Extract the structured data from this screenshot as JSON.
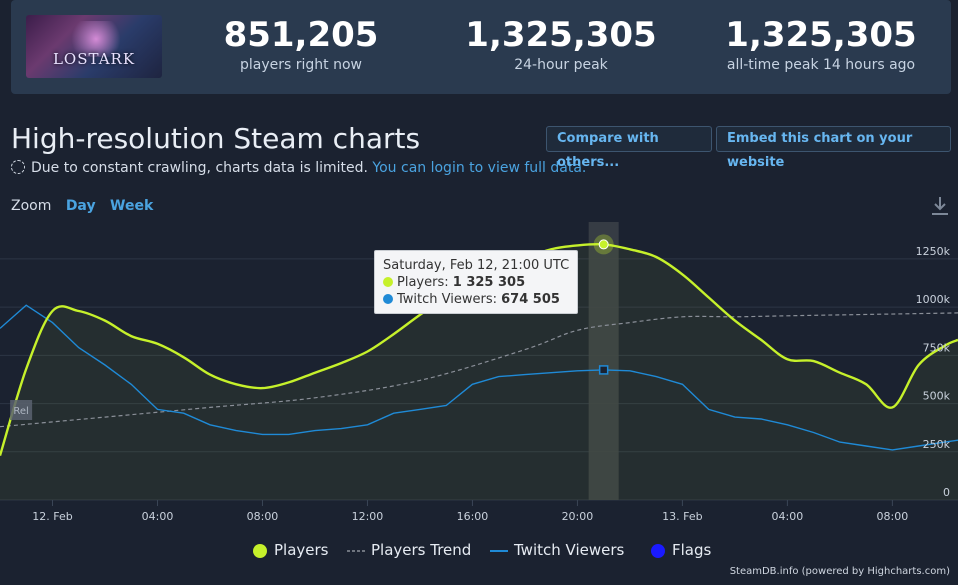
{
  "header": {
    "game_logo_text": "LOSTARK",
    "stats": [
      {
        "value": "851,205",
        "label": "players right now"
      },
      {
        "value": "1,325,305",
        "label": "24-hour peak"
      },
      {
        "value": "1,325,305",
        "label": "all-time peak 14 hours ago"
      }
    ]
  },
  "page_title": "High-resolution Steam charts",
  "notice": {
    "text": "Due to constant crawling, charts data is limited.",
    "link": "You can login to view full data."
  },
  "buttons": {
    "compare": "Compare with others...",
    "embed": "Embed this chart on your website"
  },
  "zoom": {
    "label": "Zoom",
    "day": "Day",
    "week": "Week"
  },
  "tooltip": {
    "date": "Saturday, Feb 12, 21:00 UTC",
    "players_label": "Players:",
    "players_value": "1 325 305",
    "twitch_label": "Twitch Viewers:",
    "twitch_value": "674 505"
  },
  "legend": {
    "players": "Players",
    "trend": "Players Trend",
    "twitch": "Twitch Viewers",
    "flags": "Flags"
  },
  "flag_marker": "Rel",
  "credits": "SteamDB.info (powered by Highcharts.com)",
  "colors": {
    "players": "#c6f12b",
    "twitch": "#1f8ad6",
    "trend": "#8a8f98",
    "flags": "#1a1aff"
  },
  "chart_data": {
    "type": "line",
    "x_tick_labels": [
      "12. Feb",
      "04:00",
      "08:00",
      "12:00",
      "16:00",
      "20:00",
      "13. Feb",
      "04:00",
      "08:00"
    ],
    "y_tick_labels": [
      "0",
      "250k",
      "500k",
      "750k",
      "1000k",
      "1250k"
    ],
    "ylim": [
      0,
      1400000
    ],
    "x_hours_start": -2,
    "x_hours_end": 34.5,
    "series": [
      {
        "name": "Players",
        "x": [
          -2,
          -1,
          0,
          1,
          2,
          3,
          4,
          5,
          6,
          7,
          8,
          9,
          10,
          11,
          12,
          13,
          14,
          15,
          16,
          17,
          18,
          19,
          20,
          21,
          22,
          23,
          24,
          25,
          26,
          27,
          28,
          29,
          30,
          31,
          32,
          33,
          34,
          34.5
        ],
        "values": [
          230000,
          680000,
          980000,
          980000,
          930000,
          850000,
          810000,
          740000,
          650000,
          600000,
          580000,
          610000,
          660000,
          710000,
          770000,
          860000,
          960000,
          1050000,
          1110000,
          1180000,
          1250000,
          1300000,
          1320000,
          1325305,
          1300000,
          1260000,
          1170000,
          1050000,
          930000,
          830000,
          730000,
          720000,
          660000,
          600000,
          480000,
          700000,
          800000,
          830000
        ]
      },
      {
        "name": "Players Trend",
        "x": [
          -2,
          2,
          6,
          10,
          14,
          18,
          20,
          22,
          24,
          26,
          28,
          30,
          34.5
        ],
        "values": [
          380000,
          430000,
          480000,
          530000,
          620000,
          780000,
          880000,
          920000,
          950000,
          950000,
          955000,
          960000,
          970000
        ]
      },
      {
        "name": "Twitch Viewers",
        "x": [
          -2,
          -1,
          0,
          1,
          2,
          3,
          4,
          5,
          6,
          7,
          8,
          9,
          10,
          11,
          12,
          13,
          14,
          15,
          16,
          17,
          18,
          19,
          20,
          21,
          22,
          23,
          24,
          25,
          26,
          27,
          28,
          29,
          30,
          31,
          32,
          33,
          34,
          34.5
        ],
        "values": [
          890000,
          1010000,
          920000,
          790000,
          700000,
          600000,
          470000,
          450000,
          390000,
          360000,
          340000,
          340000,
          360000,
          370000,
          390000,
          450000,
          470000,
          490000,
          600000,
          640000,
          650000,
          660000,
          670000,
          674505,
          670000,
          640000,
          600000,
          470000,
          430000,
          420000,
          390000,
          350000,
          300000,
          280000,
          260000,
          280000,
          300000,
          310000
        ]
      }
    ],
    "highlight_hour": 21,
    "flag": {
      "x": -1.5,
      "title": "Rel"
    },
    "grid": true
  }
}
